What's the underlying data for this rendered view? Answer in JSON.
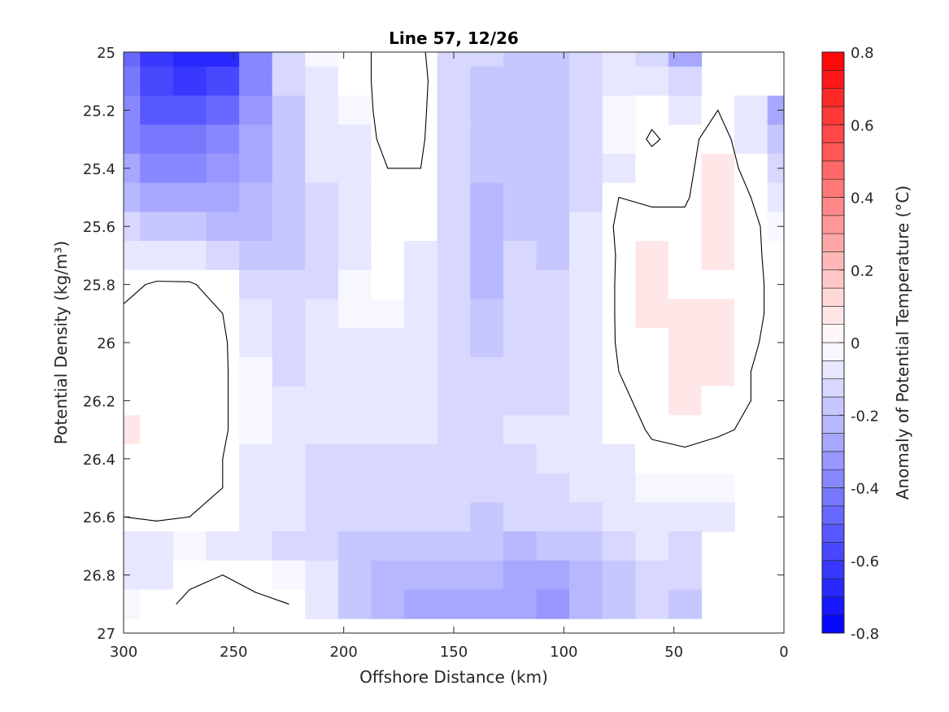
{
  "chart_data": {
    "type": "heatmap",
    "subtype": "filled-contour",
    "title": "Line 57, 12/26",
    "xlabel": "Offshore Distance (km)",
    "ylabel": "Potential Density (kg/m³)",
    "xlim": [
      300,
      0
    ],
    "x_reversed": true,
    "ylim": [
      25,
      27
    ],
    "y_reversed": true,
    "x_ticks": [
      300,
      250,
      200,
      150,
      100,
      50,
      0
    ],
    "y_ticks": [
      25,
      25.2,
      25.4,
      25.6,
      25.8,
      26,
      26.2,
      26.4,
      26.6,
      26.8,
      27
    ],
    "x_tick_labels": [
      "300",
      "250",
      "200",
      "150",
      "100",
      "50",
      "0"
    ],
    "y_tick_labels": [
      "25",
      "25.2",
      "25.4",
      "25.6",
      "25.8",
      "26",
      "26.2",
      "26.4",
      "26.6",
      "26.8",
      "27"
    ],
    "grid": false,
    "colorbar": {
      "label": "Anomaly of Potential Temperature (°C)",
      "range": [
        -0.8,
        0.8
      ],
      "step": 0.05,
      "ticks": [
        0.8,
        0.6,
        0.4,
        0.2,
        0,
        -0.2,
        -0.4,
        -0.6,
        -0.8
      ],
      "tick_labels": [
        "0.8",
        "0.6",
        "0.4",
        "0.2",
        "0",
        "-0.2",
        "-0.4",
        "-0.6",
        "-0.8"
      ],
      "colormap": "blue-white-red",
      "position": "right",
      "low_color": "#0000ff",
      "mid_color": "#ffffff",
      "high_color": "#ff0000"
    },
    "zero_contour_color": "#000000",
    "x_nodes": [
      300,
      285,
      270,
      255,
      240,
      225,
      210,
      195,
      180,
      165,
      150,
      135,
      120,
      105,
      90,
      75,
      60,
      45,
      30,
      15,
      0
    ],
    "y_nodes": [
      25.0,
      25.1,
      25.2,
      25.3,
      25.4,
      25.5,
      25.6,
      25.7,
      25.8,
      25.9,
      26.0,
      26.1,
      26.2,
      26.3,
      26.4,
      26.5,
      26.6,
      26.7,
      26.8,
      26.9
    ],
    "anomaly_grid": [
      [
        -0.48,
        -0.62,
        -0.68,
        -0.66,
        -0.36,
        -0.14,
        -0.05,
        -0.03,
        0.03,
        0.02,
        -0.12,
        -0.14,
        -0.16,
        -0.2,
        -0.12,
        -0.1,
        -0.15,
        -0.28,
        null,
        null,
        null
      ],
      [
        -0.44,
        -0.58,
        -0.64,
        -0.6,
        -0.36,
        -0.15,
        -0.06,
        -0.04,
        0.04,
        0.04,
        -0.14,
        -0.16,
        -0.18,
        -0.18,
        -0.12,
        -0.06,
        -0.08,
        -0.14,
        null,
        null,
        null
      ],
      [
        -0.4,
        -0.52,
        -0.55,
        -0.5,
        -0.32,
        -0.16,
        -0.08,
        -0.05,
        0.04,
        0.03,
        -0.14,
        -0.16,
        -0.18,
        -0.16,
        -0.12,
        -0.05,
        -0.02,
        -0.06,
        0.0,
        -0.1,
        -0.28
      ],
      [
        -0.36,
        -0.44,
        -0.45,
        -0.4,
        -0.3,
        -0.18,
        -0.09,
        -0.06,
        0.03,
        0.02,
        -0.14,
        -0.18,
        -0.16,
        -0.16,
        -0.13,
        -0.05,
        0.01,
        -0.03,
        0.04,
        -0.06,
        -0.18
      ],
      [
        -0.3,
        -0.36,
        -0.37,
        -0.32,
        -0.26,
        -0.18,
        -0.1,
        -0.06,
        0.0,
        0.0,
        -0.14,
        -0.2,
        -0.16,
        -0.16,
        -0.14,
        -0.06,
        -0.03,
        -0.02,
        0.05,
        -0.03,
        -0.12
      ],
      [
        -0.22,
        -0.26,
        -0.27,
        -0.26,
        -0.24,
        -0.18,
        -0.12,
        -0.06,
        -0.03,
        -0.02,
        -0.12,
        -0.22,
        -0.16,
        -0.18,
        -0.12,
        0.0,
        -0.02,
        -0.01,
        0.06,
        0.0,
        -0.08
      ],
      [
        -0.14,
        -0.18,
        -0.2,
        -0.22,
        -0.22,
        -0.18,
        -0.12,
        -0.06,
        -0.03,
        -0.04,
        -0.12,
        -0.24,
        -0.16,
        -0.2,
        -0.1,
        0.02,
        0.04,
        0.02,
        0.06,
        0.02,
        -0.05
      ],
      [
        -0.06,
        -0.08,
        -0.1,
        -0.14,
        -0.18,
        -0.16,
        -0.12,
        -0.07,
        -0.04,
        -0.07,
        -0.12,
        -0.24,
        -0.15,
        -0.18,
        -0.09,
        0.01,
        0.05,
        0.04,
        0.05,
        0.02,
        -0.04
      ],
      [
        -0.02,
        0.01,
        0.01,
        -0.04,
        -0.12,
        -0.14,
        -0.11,
        -0.05,
        -0.04,
        -0.09,
        -0.12,
        -0.22,
        -0.15,
        -0.15,
        -0.07,
        0.01,
        0.05,
        0.04,
        0.04,
        0.02,
        -0.03
      ],
      [
        0.01,
        0.02,
        0.02,
        0.0,
        -0.08,
        -0.12,
        -0.1,
        -0.05,
        -0.05,
        -0.1,
        -0.12,
        -0.2,
        -0.15,
        -0.14,
        -0.07,
        0.01,
        0.05,
        0.05,
        0.05,
        0.02,
        -0.03
      ],
      [
        0.01,
        0.02,
        0.02,
        0.01,
        -0.06,
        -0.12,
        -0.1,
        -0.06,
        -0.06,
        -0.1,
        -0.12,
        -0.16,
        -0.14,
        -0.14,
        -0.08,
        0.01,
        0.04,
        0.07,
        0.05,
        0.01,
        -0.03
      ],
      [
        0.02,
        0.03,
        0.03,
        0.01,
        -0.05,
        -0.11,
        -0.1,
        -0.07,
        -0.07,
        -0.1,
        -0.12,
        -0.14,
        -0.12,
        -0.12,
        -0.1,
        0.0,
        0.03,
        0.07,
        0.05,
        0.0,
        -0.03
      ],
      [
        0.04,
        0.04,
        0.04,
        0.01,
        -0.05,
        -0.1,
        -0.1,
        -0.08,
        -0.08,
        -0.1,
        -0.12,
        -0.13,
        -0.11,
        -0.11,
        -0.1,
        -0.02,
        0.03,
        0.06,
        0.04,
        0.0,
        -0.02
      ],
      [
        0.05,
        0.04,
        0.03,
        0.01,
        -0.05,
        -0.1,
        -0.1,
        -0.1,
        -0.1,
        -0.1,
        -0.12,
        -0.12,
        -0.1,
        -0.1,
        -0.1,
        -0.04,
        0.01,
        0.03,
        0.01,
        -0.01,
        -0.02
      ],
      [
        0.04,
        0.03,
        0.02,
        0.0,
        -0.06,
        -0.1,
        -0.12,
        -0.12,
        -0.12,
        -0.12,
        -0.12,
        -0.12,
        -0.12,
        -0.1,
        -0.1,
        -0.06,
        -0.02,
        -0.02,
        -0.03,
        -0.04,
        -0.04
      ],
      [
        0.03,
        0.02,
        0.01,
        0.0,
        -0.07,
        -0.1,
        -0.12,
        -0.13,
        -0.13,
        -0.13,
        -0.13,
        -0.14,
        -0.14,
        -0.12,
        -0.1,
        -0.08,
        -0.05,
        -0.05,
        -0.05,
        null,
        null
      ],
      [
        0.0,
        0.01,
        0.0,
        -0.02,
        -0.08,
        -0.1,
        -0.12,
        -0.14,
        -0.14,
        -0.14,
        -0.14,
        -0.16,
        -0.15,
        -0.14,
        -0.12,
        -0.1,
        -0.08,
        -0.07,
        -0.07,
        null,
        null
      ],
      [
        -0.06,
        -0.06,
        -0.05,
        -0.07,
        -0.1,
        -0.11,
        -0.14,
        -0.18,
        -0.2,
        -0.2,
        -0.18,
        -0.2,
        -0.22,
        -0.2,
        -0.16,
        -0.12,
        -0.1,
        -0.12,
        null,
        null,
        null
      ],
      [
        -0.08,
        -0.06,
        -0.02,
        0.0,
        -0.03,
        -0.05,
        -0.1,
        -0.18,
        -0.22,
        -0.24,
        -0.24,
        -0.24,
        -0.26,
        -0.26,
        -0.22,
        -0.16,
        -0.12,
        -0.14,
        null,
        null,
        null
      ],
      [
        -0.05,
        -0.03,
        0.02,
        0.04,
        0.02,
        0.0,
        -0.08,
        -0.16,
        -0.22,
        -0.26,
        -0.28,
        -0.28,
        -0.3,
        -0.32,
        -0.24,
        -0.18,
        -0.14,
        -0.16,
        null,
        null,
        null
      ]
    ]
  }
}
